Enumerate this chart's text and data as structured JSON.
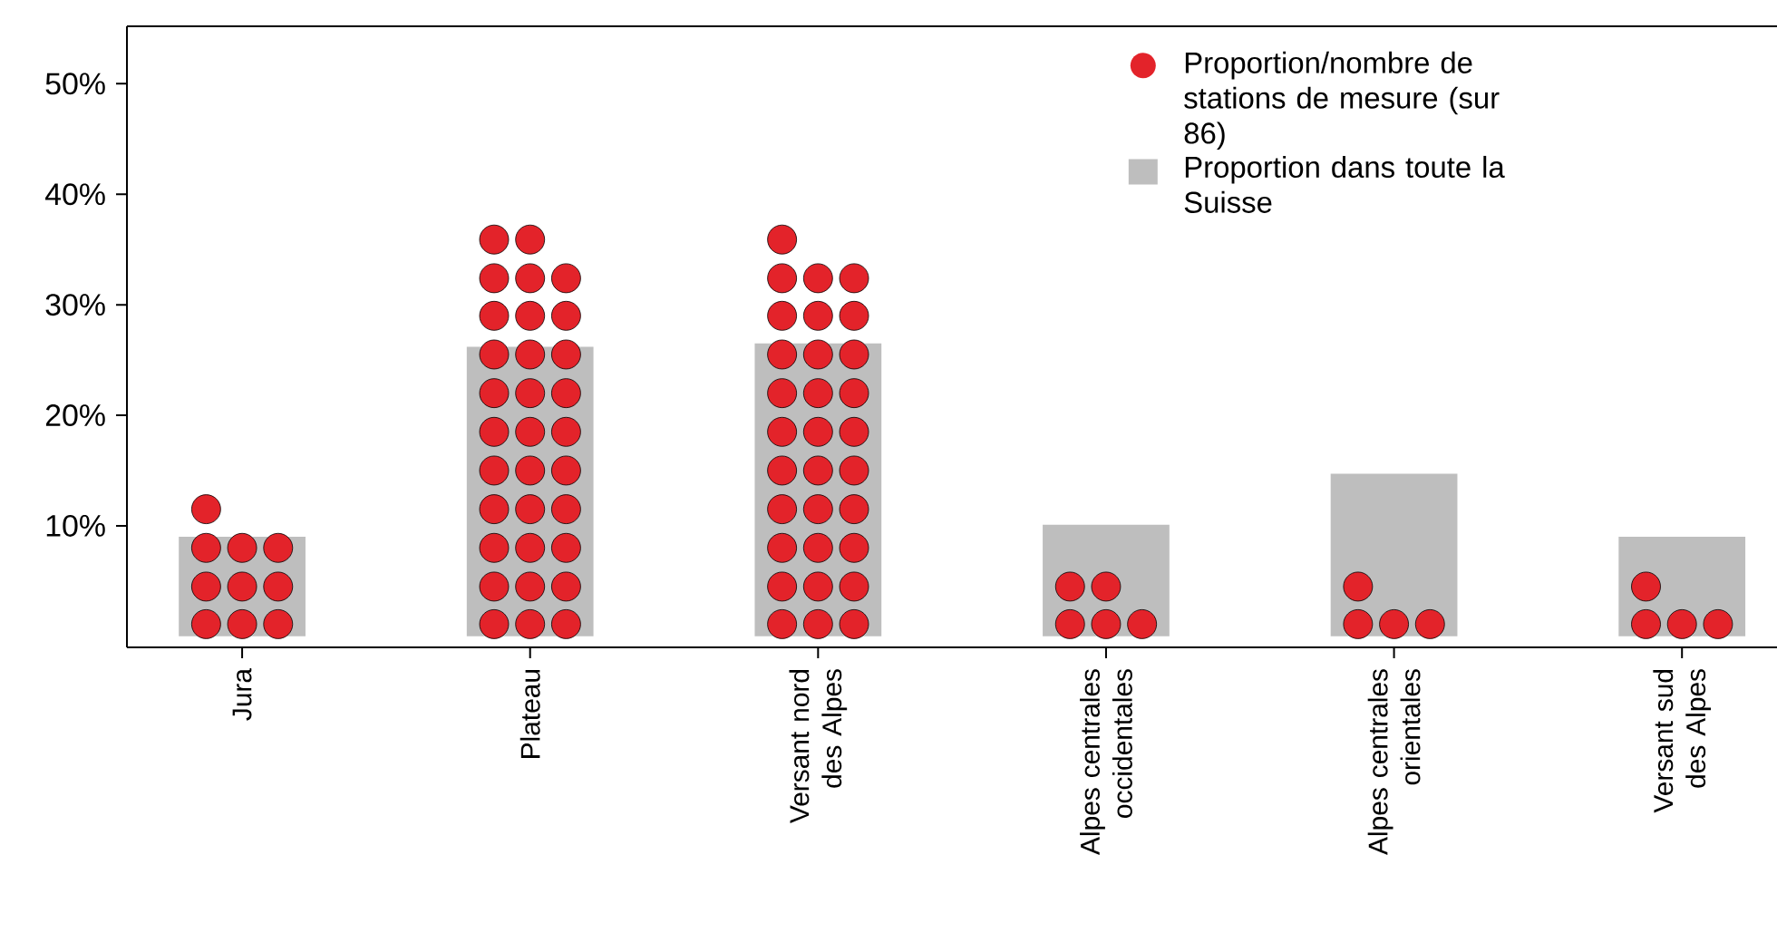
{
  "chart_data": {
    "type": "bar",
    "categories": [
      "Jura",
      "Plateau",
      "Versant nord des Alpes",
      "Alpes centrales occidentales",
      "Alpes centrales orientales",
      "Versant sud des Alpes"
    ],
    "series": [
      {
        "name": "Proportion/nombre de stations de mesure (sur 86)",
        "type": "scatter",
        "color": "#e3232a",
        "x": [
          "Jura",
          "Jura",
          "Jura",
          "Jura",
          "Jura",
          "Jura",
          "Jura",
          "Jura",
          "Jura",
          "Jura",
          "Plateau",
          "Plateau",
          "Plateau",
          "Plateau",
          "Plateau",
          "Plateau",
          "Plateau",
          "Plateau",
          "Plateau",
          "Plateau",
          "Plateau",
          "Plateau",
          "Plateau",
          "Plateau",
          "Plateau",
          "Plateau",
          "Plateau",
          "Plateau",
          "Plateau",
          "Plateau",
          "Plateau",
          "Plateau",
          "Plateau",
          "Plateau",
          "Plateau",
          "Plateau",
          "Plateau",
          "Plateau",
          "Plateau",
          "Plateau",
          "Plateau",
          "Plateau",
          "Versant nord des Alpes",
          "Versant nord des Alpes",
          "Versant nord des Alpes",
          "Versant nord des Alpes",
          "Versant nord des Alpes",
          "Versant nord des Alpes",
          "Versant nord des Alpes",
          "Versant nord des Alpes",
          "Versant nord des Alpes",
          "Versant nord des Alpes",
          "Versant nord des Alpes",
          "Versant nord des Alpes",
          "Versant nord des Alpes",
          "Versant nord des Alpes",
          "Versant nord des Alpes",
          "Versant nord des Alpes",
          "Versant nord des Alpes",
          "Versant nord des Alpes",
          "Versant nord des Alpes",
          "Versant nord des Alpes",
          "Versant nord des Alpes",
          "Versant nord des Alpes",
          "Versant nord des Alpes",
          "Versant nord des Alpes",
          "Versant nord des Alpes",
          "Versant nord des Alpes",
          "Versant nord des Alpes",
          "Versant nord des Alpes",
          "Versant nord des Alpes",
          "Versant nord des Alpes",
          "Versant nord des Alpes",
          "Alpes centrales occidentales",
          "Alpes centrales occidentales",
          "Alpes centrales occidentales",
          "Alpes centrales occidentales",
          "Alpes centrales occidentales",
          "Alpes centrales orientales",
          "Alpes centrales orientales",
          "Alpes centrales orientales",
          "Alpes centrales orientales",
          "Versant sud des Alpes",
          "Versant sud des Alpes",
          "Versant sud des Alpes",
          "Versant sud des Alpes"
        ],
        "values": [
          1.1,
          1.1,
          1.1,
          4.5,
          4.5,
          4.5,
          8.0,
          8.0,
          8.0,
          11.5,
          1.1,
          1.1,
          1.1,
          4.5,
          4.5,
          4.5,
          8.0,
          8.0,
          8.0,
          11.5,
          11.5,
          11.5,
          15.0,
          15.0,
          15.0,
          18.5,
          18.5,
          18.5,
          22.0,
          22.0,
          22.0,
          25.5,
          25.5,
          25.5,
          29.0,
          29.0,
          29.0,
          32.4,
          32.4,
          32.4,
          35.9,
          35.9,
          1.1,
          1.1,
          1.1,
          4.5,
          4.5,
          4.5,
          8.0,
          8.0,
          8.0,
          11.5,
          11.5,
          11.5,
          15.0,
          15.0,
          15.0,
          18.5,
          18.5,
          18.5,
          22.0,
          22.0,
          22.0,
          25.5,
          25.5,
          25.5,
          29.0,
          29.0,
          29.0,
          32.4,
          32.4,
          32.4,
          35.9,
          1.1,
          1.1,
          1.1,
          4.5,
          4.5,
          1.1,
          1.1,
          1.1,
          4.5,
          1.1,
          1.1,
          1.1,
          4.5
        ]
      },
      {
        "name": "Proportion dans toute la Suisse",
        "color": "#bebebe",
        "values": [
          9.0,
          26.2,
          26.5,
          10.1,
          14.7,
          9.0
        ]
      }
    ],
    "ylim": [
      -1.0,
      55.2
    ],
    "yticks": [
      {
        "value": 10,
        "label": "10%"
      },
      {
        "value": 20,
        "label": "20%"
      },
      {
        "value": 30,
        "label": "30%"
      },
      {
        "value": 40,
        "label": "40%"
      },
      {
        "value": 50,
        "label": "50%"
      }
    ],
    "legend": "top right"
  }
}
